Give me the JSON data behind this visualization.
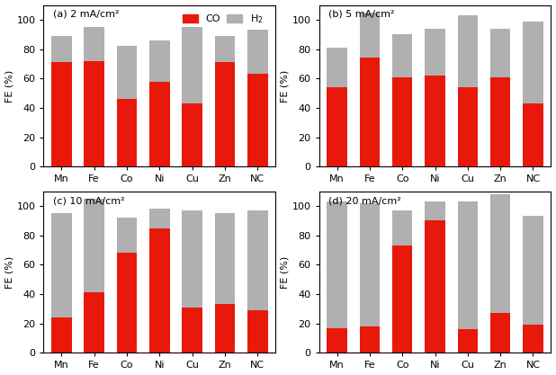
{
  "categories": [
    "Mn",
    "Fe",
    "Co",
    "Ni",
    "Cu",
    "Zn",
    "NC"
  ],
  "subplots": [
    {
      "label": "(a) 2 mA/cm²",
      "CO": [
        71,
        72,
        46,
        58,
        43,
        71,
        63
      ],
      "total": [
        89,
        95,
        82,
        86,
        95,
        89,
        93
      ]
    },
    {
      "label": "(b) 5 mA/cm²",
      "CO": [
        54,
        74,
        61,
        62,
        54,
        61,
        43
      ],
      "total": [
        81,
        105,
        90,
        94,
        103,
        94,
        99
      ]
    },
    {
      "label": "(c) 10 mA/cm²",
      "CO": [
        24,
        41,
        68,
        85,
        31,
        33,
        29
      ],
      "total": [
        95,
        105,
        92,
        98,
        97,
        95,
        97
      ]
    },
    {
      "label": "(d) 20 mA/cm²",
      "CO": [
        17,
        18,
        73,
        90,
        16,
        27,
        19
      ],
      "total": [
        103,
        102,
        97,
        103,
        103,
        108,
        93
      ]
    }
  ],
  "CO_color": "#e8190a",
  "H2_color": "#b0b0b0",
  "ylabel": "FE (%)",
  "ylim": [
    0,
    110
  ],
  "yticks": [
    0,
    20,
    40,
    60,
    80,
    100
  ]
}
